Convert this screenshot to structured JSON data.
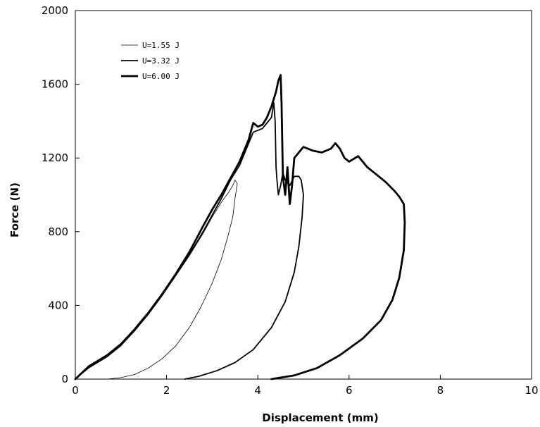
{
  "chart_data": {
    "type": "line",
    "title": "",
    "xlabel": "Displacement (mm)",
    "ylabel": "Force (N)",
    "xlim": [
      0,
      10
    ],
    "ylim": [
      0,
      2000
    ],
    "xticks": [
      "0",
      "2",
      "4",
      "6",
      "8",
      "10"
    ],
    "yticks": [
      "0",
      "400",
      "800",
      "1200",
      "1600",
      "2000"
    ],
    "grid": false,
    "legend_position": "top-left",
    "series": [
      {
        "name": "U=1.55 J",
        "color": "#000000",
        "points": [
          [
            0,
            0
          ],
          [
            0.3,
            60
          ],
          [
            0.7,
            120
          ],
          [
            1.0,
            180
          ],
          [
            1.3,
            260
          ],
          [
            1.6,
            350
          ],
          [
            1.9,
            450
          ],
          [
            2.2,
            560
          ],
          [
            2.5,
            670
          ],
          [
            2.8,
            790
          ],
          [
            3.0,
            880
          ],
          [
            3.2,
            960
          ],
          [
            3.35,
            1010
          ],
          [
            3.45,
            1050
          ],
          [
            3.5,
            1080
          ],
          [
            3.55,
            1060
          ],
          [
            3.5,
            980
          ],
          [
            3.45,
            880
          ],
          [
            3.35,
            780
          ],
          [
            3.2,
            650
          ],
          [
            3.0,
            520
          ],
          [
            2.75,
            390
          ],
          [
            2.5,
            280
          ],
          [
            2.2,
            180
          ],
          [
            1.9,
            110
          ],
          [
            1.6,
            60
          ],
          [
            1.3,
            25
          ],
          [
            1.0,
            8
          ],
          [
            0.7,
            0
          ]
        ]
      },
      {
        "name": "U=3.32 J",
        "color": "#000000",
        "points": [
          [
            0,
            0
          ],
          [
            0.3,
            65
          ],
          [
            0.7,
            125
          ],
          [
            1.0,
            185
          ],
          [
            1.3,
            265
          ],
          [
            1.6,
            355
          ],
          [
            1.9,
            455
          ],
          [
            2.2,
            565
          ],
          [
            2.5,
            675
          ],
          [
            2.8,
            800
          ],
          [
            3.0,
            890
          ],
          [
            3.2,
            980
          ],
          [
            3.4,
            1080
          ],
          [
            3.6,
            1160
          ],
          [
            3.8,
            1280
          ],
          [
            3.9,
            1340
          ],
          [
            4.1,
            1360
          ],
          [
            4.2,
            1390
          ],
          [
            4.3,
            1420
          ],
          [
            4.35,
            1500
          ],
          [
            4.38,
            1400
          ],
          [
            4.4,
            1150
          ],
          [
            4.42,
            1080
          ],
          [
            4.45,
            1000
          ],
          [
            4.5,
            1050
          ],
          [
            4.55,
            1120
          ],
          [
            4.6,
            1080
          ],
          [
            4.7,
            1050
          ],
          [
            4.8,
            1100
          ],
          [
            4.9,
            1100
          ],
          [
            4.95,
            1080
          ],
          [
            5.0,
            1000
          ],
          [
            4.97,
            880
          ],
          [
            4.9,
            720
          ],
          [
            4.8,
            580
          ],
          [
            4.6,
            420
          ],
          [
            4.3,
            280
          ],
          [
            3.9,
            160
          ],
          [
            3.5,
            90
          ],
          [
            3.1,
            45
          ],
          [
            2.7,
            15
          ],
          [
            2.4,
            0
          ]
        ]
      },
      {
        "name": "U=6.00 J",
        "color": "#000000",
        "points": [
          [
            0,
            0
          ],
          [
            0.3,
            70
          ],
          [
            0.7,
            130
          ],
          [
            1.0,
            190
          ],
          [
            1.3,
            270
          ],
          [
            1.6,
            360
          ],
          [
            1.9,
            460
          ],
          [
            2.2,
            570
          ],
          [
            2.5,
            690
          ],
          [
            2.8,
            830
          ],
          [
            3.0,
            920
          ],
          [
            3.2,
            1000
          ],
          [
            3.4,
            1090
          ],
          [
            3.6,
            1180
          ],
          [
            3.8,
            1300
          ],
          [
            3.9,
            1390
          ],
          [
            4.0,
            1370
          ],
          [
            4.1,
            1380
          ],
          [
            4.2,
            1420
          ],
          [
            4.3,
            1480
          ],
          [
            4.4,
            1560
          ],
          [
            4.45,
            1620
          ],
          [
            4.5,
            1650
          ],
          [
            4.52,
            1500
          ],
          [
            4.55,
            1100
          ],
          [
            4.6,
            1000
          ],
          [
            4.65,
            1150
          ],
          [
            4.7,
            950
          ],
          [
            4.75,
            1050
          ],
          [
            4.8,
            1200
          ],
          [
            4.9,
            1230
          ],
          [
            5.0,
            1260
          ],
          [
            5.2,
            1240
          ],
          [
            5.4,
            1230
          ],
          [
            5.6,
            1250
          ],
          [
            5.7,
            1280
          ],
          [
            5.8,
            1250
          ],
          [
            5.9,
            1200
          ],
          [
            6.0,
            1180
          ],
          [
            6.2,
            1210
          ],
          [
            6.4,
            1150
          ],
          [
            6.6,
            1110
          ],
          [
            6.8,
            1070
          ],
          [
            7.0,
            1020
          ],
          [
            7.1,
            990
          ],
          [
            7.15,
            970
          ],
          [
            7.2,
            950
          ],
          [
            7.22,
            850
          ],
          [
            7.2,
            700
          ],
          [
            7.1,
            550
          ],
          [
            6.95,
            430
          ],
          [
            6.7,
            320
          ],
          [
            6.3,
            220
          ],
          [
            5.8,
            130
          ],
          [
            5.3,
            60
          ],
          [
            4.8,
            20
          ],
          [
            4.3,
            0
          ]
        ]
      }
    ]
  }
}
